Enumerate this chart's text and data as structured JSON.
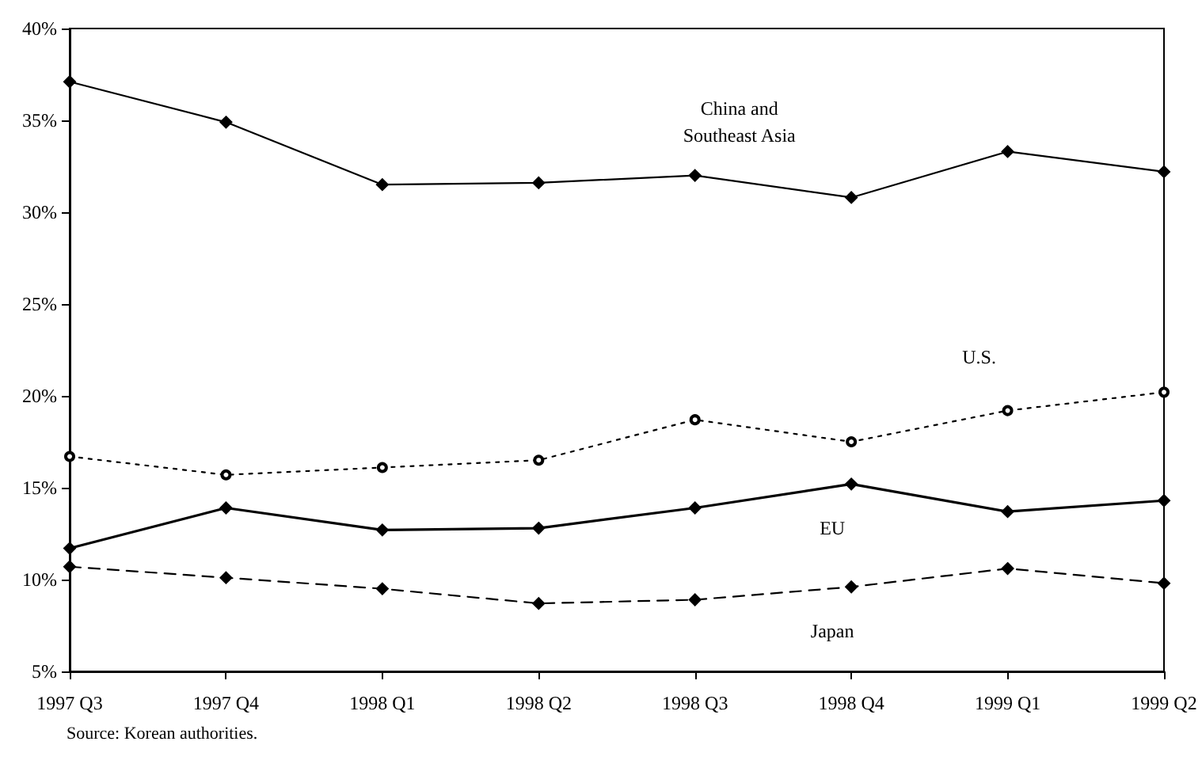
{
  "chart_data": {
    "type": "line",
    "categories": [
      "1997 Q3",
      "1997 Q4",
      "1998 Q1",
      "1998 Q2",
      "1998 Q3",
      "1998 Q4",
      "1999 Q1",
      "1999 Q2"
    ],
    "series": [
      {
        "name": "China and\nSoutheast Asia",
        "color": "#000000",
        "marker": "diamond",
        "line_style": "solid",
        "values": [
          37.1,
          34.9,
          31.5,
          31.6,
          32.0,
          30.8,
          33.3,
          32.2
        ]
      },
      {
        "name": "U.S.",
        "color": "#000000",
        "marker": "circle",
        "line_style": "dotted",
        "values": [
          16.7,
          15.7,
          16.1,
          16.5,
          18.7,
          17.5,
          19.2,
          20.2
        ]
      },
      {
        "name": "EU",
        "color": "#000000",
        "marker": "diamond",
        "line_style": "solid",
        "values": [
          11.7,
          13.9,
          12.7,
          12.8,
          13.9,
          15.2,
          13.7,
          14.3
        ]
      },
      {
        "name": "Japan",
        "color": "#000000",
        "marker": "diamond",
        "line_style": "dashed",
        "values": [
          10.7,
          10.1,
          9.5,
          8.7,
          8.9,
          9.6,
          10.6,
          9.8
        ]
      }
    ],
    "ylim": [
      5,
      40
    ],
    "yticks": [
      {
        "value": 5,
        "label": "5%"
      },
      {
        "value": 10,
        "label": "10%"
      },
      {
        "value": 15,
        "label": "15%"
      },
      {
        "value": 20,
        "label": "20%"
      },
      {
        "value": 25,
        "label": "25%"
      },
      {
        "value": 30,
        "label": "30%"
      },
      {
        "value": 35,
        "label": "35%"
      },
      {
        "value": 40,
        "label": "40%"
      }
    ],
    "grid": false,
    "annotations": [
      "Source: Korean authorities."
    ]
  }
}
